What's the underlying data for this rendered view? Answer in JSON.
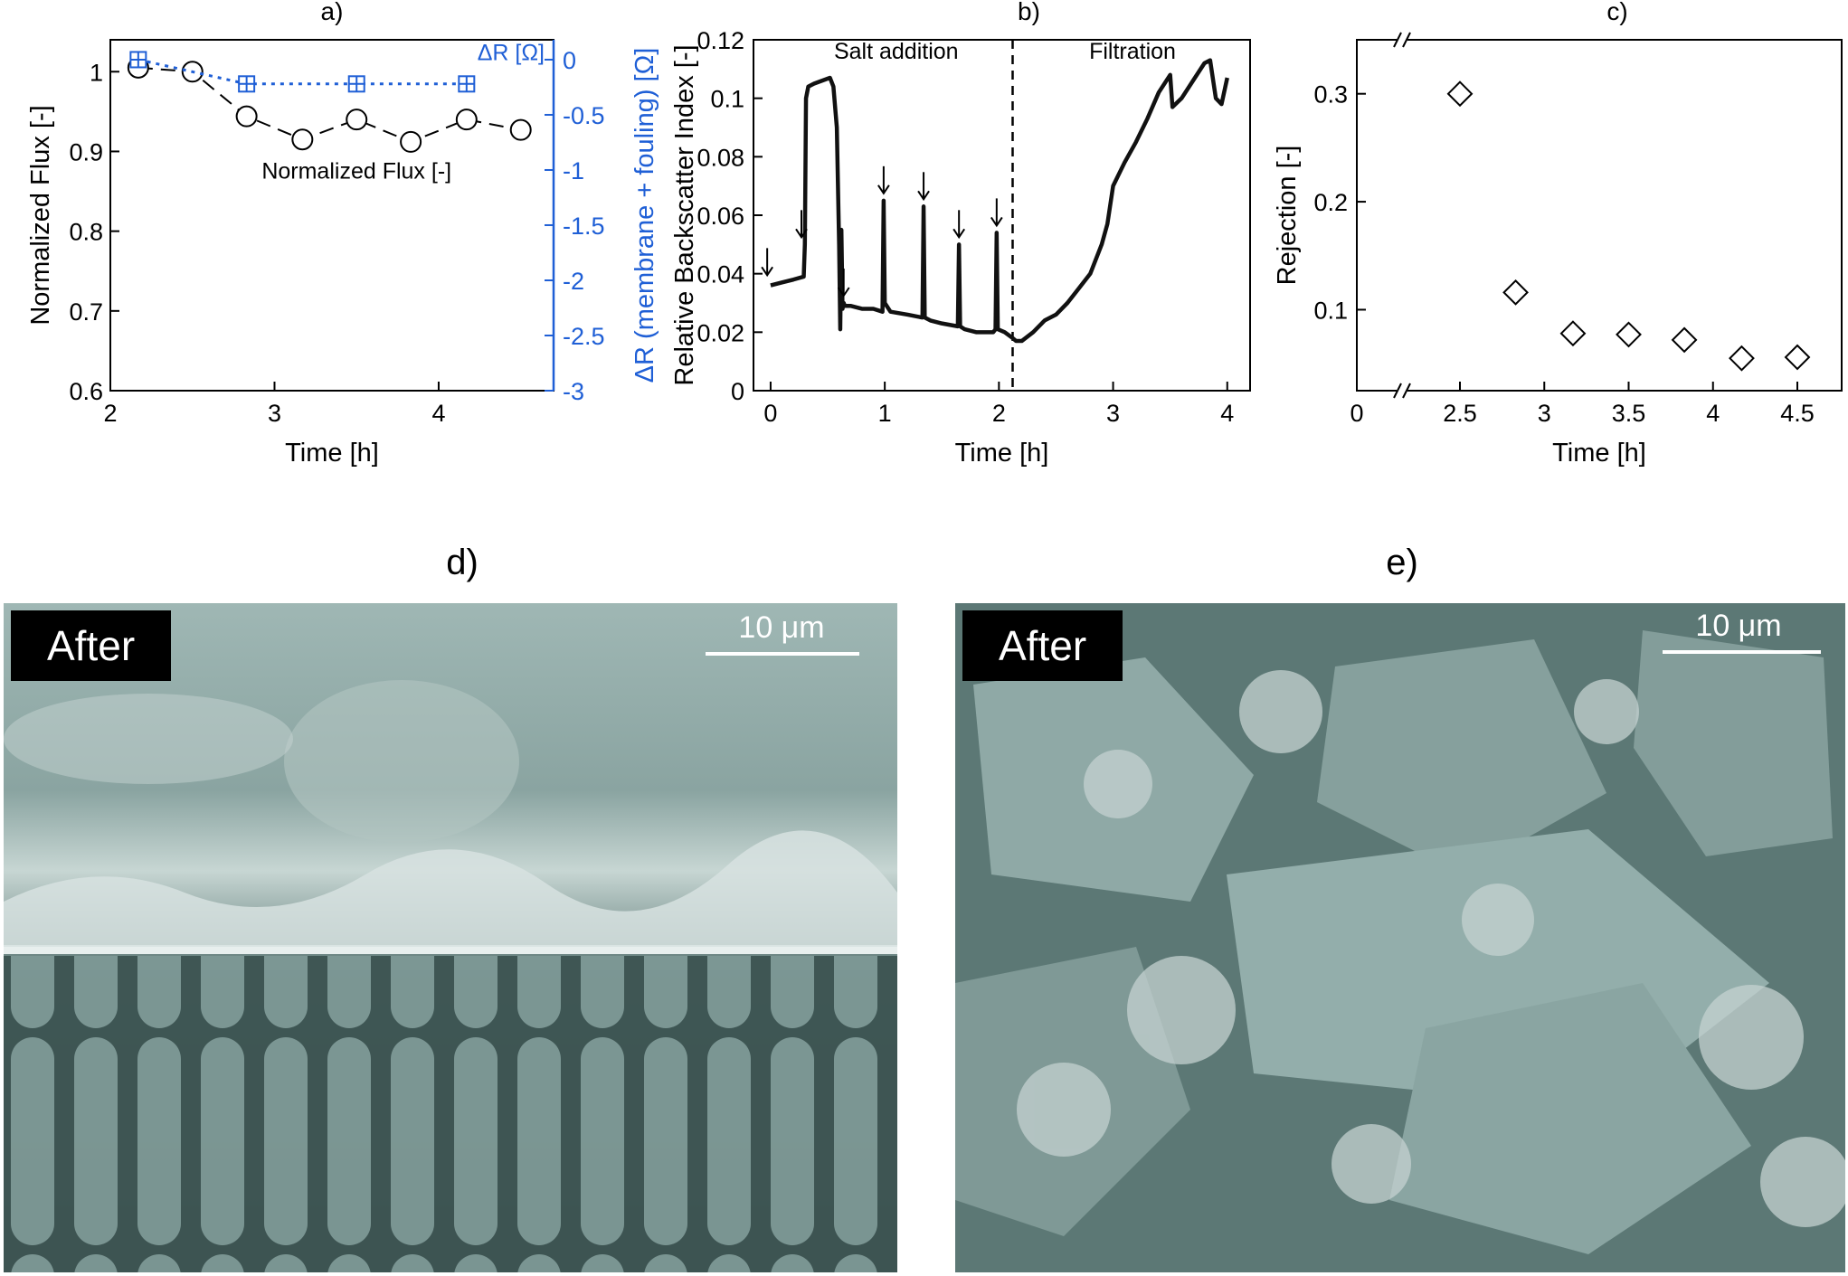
{
  "panels": {
    "d": {
      "label": "d)",
      "tag": "After",
      "scalebar": "10 μm"
    },
    "e": {
      "label": "e)",
      "tag": "After",
      "scalebar": "10 μm"
    }
  },
  "chart_data": [
    {
      "id": "a",
      "type": "scatter",
      "panel_label": "a)",
      "xlabel": "Time [h]",
      "ylabel": "Normalized Flux [-]",
      "y2label": "ΔR (membrane + fouling) [Ω]",
      "xlim": [
        2,
        4.7
      ],
      "ylim": [
        0.6,
        1.04
      ],
      "y2lim": [
        -3,
        0.18
      ],
      "xticks": [
        2,
        3,
        4
      ],
      "yticks": [
        0.6,
        0.7,
        0.8,
        0.9,
        1
      ],
      "y2ticks": [
        -3,
        -2.5,
        -2,
        -1.5,
        -1,
        -0.5,
        0
      ],
      "y2_color": "#1f5fd6",
      "series": [
        {
          "name": "Normalized Flux [-]",
          "axis": "left",
          "marker": "circle",
          "line": "dashed",
          "color": "#000000",
          "x": [
            2.17,
            2.5,
            2.83,
            3.17,
            3.5,
            3.83,
            4.17,
            4.5
          ],
          "y": [
            1.005,
            1.0,
            0.944,
            0.915,
            0.94,
            0.912,
            0.94,
            0.927
          ]
        },
        {
          "name": "ΔR [Ω]",
          "axis": "right",
          "marker": "boxed-plus",
          "line": "dotted",
          "color": "#1f5fd6",
          "x": [
            2.17,
            2.83,
            3.5,
            4.17
          ],
          "y": [
            0.0,
            -0.22,
            -0.22,
            -0.22
          ]
        }
      ]
    },
    {
      "id": "b",
      "type": "line",
      "panel_label": "b)",
      "xlabel": "Time [h]",
      "ylabel": "Relative Backscatter Index [-]",
      "xlim": [
        -0.15,
        4.2
      ],
      "ylim": [
        0,
        0.12
      ],
      "xticks": [
        0,
        1,
        2,
        3,
        4
      ],
      "yticks": [
        0,
        0.02,
        0.04,
        0.06,
        0.08,
        0.1,
        0.12
      ],
      "annotations": [
        {
          "text": "Salt addition",
          "x": 1.1,
          "y": 0.1135
        },
        {
          "text": "Filtration",
          "x": 3.17,
          "y": 0.1135
        }
      ],
      "divider_x": 2.12,
      "arrow_x": [
        -0.03,
        0.27,
        0.64,
        0.99,
        1.34,
        1.65,
        1.98
      ],
      "series": [
        {
          "name": "",
          "color": "#111111",
          "x": [
            0.0,
            0.1,
            0.2,
            0.29,
            0.3,
            0.31,
            0.33,
            0.38,
            0.45,
            0.52,
            0.55,
            0.58,
            0.6,
            0.61,
            0.62,
            0.63,
            0.64,
            0.65,
            0.7,
            0.8,
            0.9,
            0.98,
            0.99,
            1.0,
            1.05,
            1.2,
            1.33,
            1.34,
            1.35,
            1.4,
            1.5,
            1.64,
            1.65,
            1.66,
            1.7,
            1.8,
            1.95,
            1.97,
            1.98,
            1.99,
            2.05,
            2.12,
            2.15,
            2.2,
            2.3,
            2.4,
            2.5,
            2.6,
            2.7,
            2.8,
            2.9,
            2.95,
            3.0,
            3.1,
            3.2,
            3.3,
            3.4,
            3.5,
            3.52,
            3.6,
            3.7,
            3.8,
            3.85,
            3.9,
            3.95,
            4.0
          ],
          "y": [
            0.036,
            0.037,
            0.038,
            0.039,
            0.05,
            0.1,
            0.104,
            0.105,
            0.106,
            0.107,
            0.104,
            0.09,
            0.05,
            0.021,
            0.055,
            0.028,
            0.03,
            0.029,
            0.029,
            0.028,
            0.028,
            0.027,
            0.065,
            0.03,
            0.027,
            0.026,
            0.025,
            0.063,
            0.025,
            0.024,
            0.023,
            0.022,
            0.05,
            0.022,
            0.021,
            0.02,
            0.02,
            0.021,
            0.054,
            0.021,
            0.02,
            0.018,
            0.017,
            0.017,
            0.02,
            0.024,
            0.026,
            0.03,
            0.035,
            0.04,
            0.05,
            0.057,
            0.07,
            0.078,
            0.085,
            0.093,
            0.102,
            0.108,
            0.097,
            0.1,
            0.106,
            0.112,
            0.113,
            0.1,
            0.098,
            0.107
          ]
        }
      ]
    },
    {
      "id": "c",
      "type": "scatter",
      "panel_label": "c)",
      "xlabel": "Time [h]",
      "ylabel": "Rejection [-]",
      "x_axis_break": true,
      "xticks": [
        0,
        2.5,
        3,
        3.5,
        4,
        4.5
      ],
      "yticks": [
        0.1,
        0.2,
        0.3
      ],
      "ylim": [
        0.025,
        0.35
      ],
      "series": [
        {
          "name": "",
          "marker": "diamond",
          "color": "#000000",
          "x": [
            2.5,
            2.83,
            3.17,
            3.5,
            3.83,
            4.17,
            4.5
          ],
          "y": [
            0.3,
            0.116,
            0.078,
            0.077,
            0.072,
            0.055,
            0.056
          ]
        }
      ]
    }
  ]
}
